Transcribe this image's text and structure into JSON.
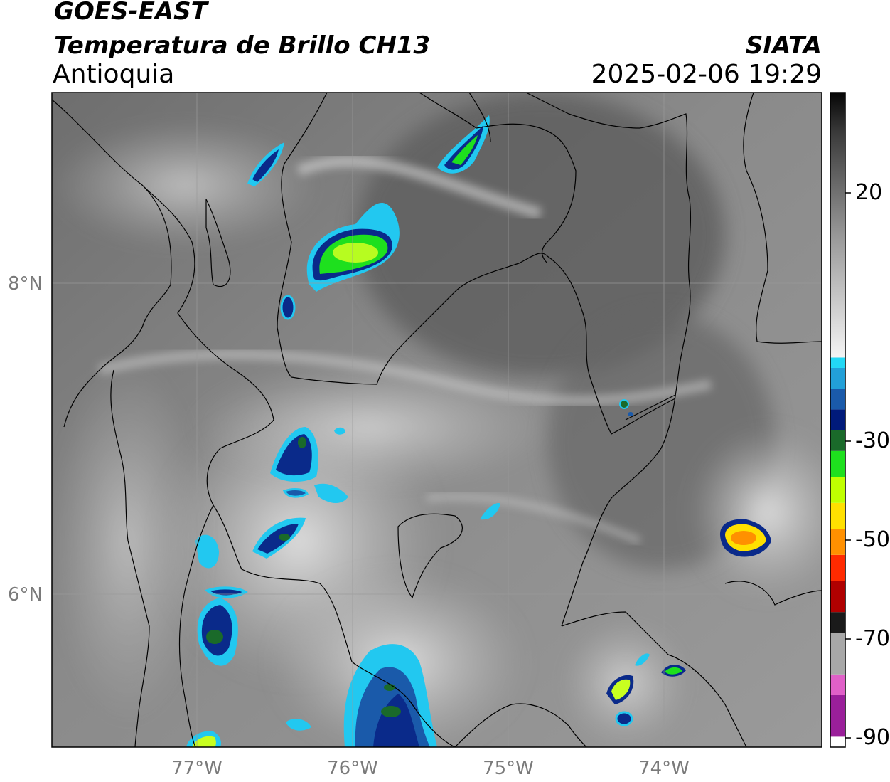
{
  "header": {
    "satellite": "GOES-EAST",
    "product": "Temperatura de Brillo CH13",
    "region": "Antioquia",
    "organization": "SIATA",
    "timestamp": "2025-02-06 19:29"
  },
  "map": {
    "latitude_labels": [
      "8°N",
      "6°N"
    ],
    "longitude_labels": [
      "77°W",
      "76°W",
      "75°W",
      "74°W"
    ]
  },
  "colorbar": {
    "tick_labels": [
      "20",
      "-30",
      "-50",
      "-70",
      "-90"
    ],
    "segments": [
      {
        "from": -90,
        "to": -82,
        "color": "#9a1f9a"
      },
      {
        "from": -82,
        "to": -78,
        "color": "#e060c8"
      },
      {
        "from": -78,
        "to": -70,
        "color": "#a8a8a8"
      },
      {
        "from": -70,
        "to": -66,
        "color": "#1a1a1a"
      },
      {
        "from": -66,
        "to": -60,
        "color": "#b00000"
      },
      {
        "from": -60,
        "to": -55,
        "color": "#ff2a00"
      },
      {
        "from": -55,
        "to": -50,
        "color": "#ff9000"
      },
      {
        "from": -50,
        "to": -45,
        "color": "#ffe000"
      },
      {
        "from": -45,
        "to": -40,
        "color": "#c0ff00"
      },
      {
        "from": -40,
        "to": -35,
        "color": "#1ee01e"
      },
      {
        "from": -35,
        "to": -31,
        "color": "#1a6a2a"
      },
      {
        "from": -31,
        "to": -27,
        "color": "#001a7a"
      },
      {
        "from": -27,
        "to": -23,
        "color": "#1a5aaa"
      },
      {
        "from": -23,
        "to": -19,
        "color": "#22a0d8"
      },
      {
        "from": -19,
        "to": -17,
        "color": "#22d8f5"
      },
      {
        "from": -17,
        "to": 0,
        "color": "#e8e8e8"
      },
      {
        "from": 0,
        "to": 20,
        "color": "#8a8a8a"
      },
      {
        "from": 20,
        "to": 30,
        "color": "#404040"
      },
      {
        "from": 30,
        "to": 34,
        "color": "#0a0a0a"
      }
    ]
  }
}
